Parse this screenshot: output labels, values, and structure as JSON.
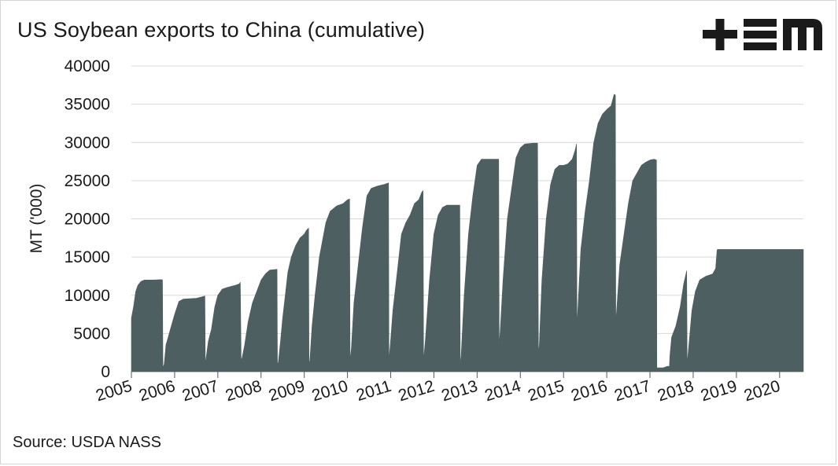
{
  "header": {
    "title": "US Soybean exports to China (cumulative)"
  },
  "footer": {
    "source": "Source: USDA NASS"
  },
  "logo": {
    "icon": "tem-logo",
    "text": "+EM",
    "color": "#1a1a1a"
  },
  "chart_data": {
    "type": "area",
    "title": "US Soybean exports to China (cumulative)",
    "xlabel": "",
    "ylabel": "MT ('000)",
    "ylim": [
      0,
      40000
    ],
    "yticks": [
      0,
      5000,
      10000,
      15000,
      20000,
      25000,
      30000,
      35000,
      40000
    ],
    "xlim": [
      2005.0,
      2020.55
    ],
    "xticks": [
      "2005",
      "2006",
      "2007",
      "2008",
      "2009",
      "2010",
      "2011",
      "2012",
      "2013",
      "2014",
      "2015",
      "2016",
      "2017",
      "2018",
      "2019",
      "2020"
    ],
    "grid": "horizontal",
    "legend": "none",
    "fill_color": "#4d5f60",
    "series": [
      {
        "values": [
          [
            2005.0,
            7000
          ],
          [
            2005.05,
            8500
          ],
          [
            2005.1,
            10500
          ],
          [
            2005.15,
            11300
          ],
          [
            2005.22,
            11800
          ],
          [
            2005.3,
            12000
          ],
          [
            2005.5,
            12000
          ],
          [
            2005.7,
            12050
          ],
          [
            2005.72,
            12000
          ],
          [
            2005.73,
            500
          ],
          [
            2005.76,
            1000
          ],
          [
            2005.8,
            3500
          ],
          [
            2005.85,
            4500
          ],
          [
            2005.9,
            5500
          ],
          [
            2006.0,
            7500
          ],
          [
            2006.1,
            9200
          ],
          [
            2006.2,
            9500
          ],
          [
            2006.5,
            9600
          ],
          [
            2006.7,
            9900
          ],
          [
            2006.71,
            1000
          ],
          [
            2006.72,
            1500
          ],
          [
            2006.78,
            4000
          ],
          [
            2006.85,
            5500
          ],
          [
            2006.93,
            8500
          ],
          [
            2007.0,
            10000
          ],
          [
            2007.1,
            10800
          ],
          [
            2007.2,
            11000
          ],
          [
            2007.4,
            11300
          ],
          [
            2007.5,
            11500
          ],
          [
            2007.52,
            11700
          ],
          [
            2007.54,
            1500
          ],
          [
            2007.56,
            1800
          ],
          [
            2007.62,
            3500
          ],
          [
            2007.7,
            6500
          ],
          [
            2007.8,
            9000
          ],
          [
            2007.9,
            10500
          ],
          [
            2008.0,
            12000
          ],
          [
            2008.1,
            12800
          ],
          [
            2008.2,
            13300
          ],
          [
            2008.37,
            13400
          ],
          [
            2008.38,
            1000
          ],
          [
            2008.4,
            1200
          ],
          [
            2008.45,
            4000
          ],
          [
            2008.5,
            7000
          ],
          [
            2008.55,
            9500
          ],
          [
            2008.62,
            13000
          ],
          [
            2008.7,
            15000
          ],
          [
            2008.8,
            16500
          ],
          [
            2008.9,
            17500
          ],
          [
            2009.0,
            18000
          ],
          [
            2009.05,
            18500
          ],
          [
            2009.1,
            18800
          ],
          [
            2009.11,
            1000
          ],
          [
            2009.13,
            1500
          ],
          [
            2009.18,
            6000
          ],
          [
            2009.25,
            10000
          ],
          [
            2009.35,
            15000
          ],
          [
            2009.5,
            19500
          ],
          [
            2009.6,
            21000
          ],
          [
            2009.75,
            21700
          ],
          [
            2009.9,
            22000
          ],
          [
            2010.0,
            22500
          ],
          [
            2010.05,
            22600
          ],
          [
            2010.06,
            1500
          ],
          [
            2010.09,
            3000
          ],
          [
            2010.15,
            9000
          ],
          [
            2010.25,
            14000
          ],
          [
            2010.35,
            19000
          ],
          [
            2010.45,
            23000
          ],
          [
            2010.55,
            24000
          ],
          [
            2010.7,
            24300
          ],
          [
            2010.85,
            24500
          ],
          [
            2010.95,
            24700
          ],
          [
            2010.96,
            1500
          ],
          [
            2010.99,
            3500
          ],
          [
            2011.05,
            8000
          ],
          [
            2011.15,
            13000
          ],
          [
            2011.25,
            18000
          ],
          [
            2011.35,
            19500
          ],
          [
            2011.45,
            20500
          ],
          [
            2011.55,
            22000
          ],
          [
            2011.65,
            22500
          ],
          [
            2011.72,
            23500
          ],
          [
            2011.75,
            23700
          ],
          [
            2011.76,
            1500
          ],
          [
            2011.8,
            4000
          ],
          [
            2011.9,
            12000
          ],
          [
            2012.0,
            18000
          ],
          [
            2012.1,
            20500
          ],
          [
            2012.2,
            21500
          ],
          [
            2012.3,
            21800
          ],
          [
            2012.45,
            21800
          ],
          [
            2012.6,
            21800
          ],
          [
            2012.61,
            1000
          ],
          [
            2012.63,
            2000
          ],
          [
            2012.7,
            10000
          ],
          [
            2012.8,
            18000
          ],
          [
            2012.9,
            23000
          ],
          [
            2013.0,
            27000
          ],
          [
            2013.1,
            27800
          ],
          [
            2013.3,
            27800
          ],
          [
            2013.5,
            27800
          ],
          [
            2013.51,
            3500
          ],
          [
            2013.53,
            5000
          ],
          [
            2013.6,
            12000
          ],
          [
            2013.7,
            20000
          ],
          [
            2013.8,
            24000
          ],
          [
            2013.9,
            28000
          ],
          [
            2014.0,
            29300
          ],
          [
            2014.1,
            29800
          ],
          [
            2014.3,
            29900
          ],
          [
            2014.4,
            29900
          ],
          [
            2014.42,
            2500
          ],
          [
            2014.44,
            3500
          ],
          [
            2014.5,
            12000
          ],
          [
            2014.6,
            20000
          ],
          [
            2014.7,
            24500
          ],
          [
            2014.8,
            26500
          ],
          [
            2014.9,
            27000
          ],
          [
            2015.0,
            27000
          ],
          [
            2015.1,
            27200
          ],
          [
            2015.2,
            27800
          ],
          [
            2015.27,
            29000
          ],
          [
            2015.3,
            29800
          ],
          [
            2015.31,
            6000
          ],
          [
            2015.33,
            8000
          ],
          [
            2015.4,
            16000
          ],
          [
            2015.5,
            21000
          ],
          [
            2015.6,
            25000
          ],
          [
            2015.7,
            30000
          ],
          [
            2015.8,
            32500
          ],
          [
            2015.9,
            33700
          ],
          [
            2016.0,
            34300
          ],
          [
            2016.1,
            34800
          ],
          [
            2016.17,
            36300
          ],
          [
            2016.2,
            36200
          ],
          [
            2016.21,
            6500
          ],
          [
            2016.23,
            8000
          ],
          [
            2016.3,
            14000
          ],
          [
            2016.4,
            18000
          ],
          [
            2016.5,
            22000
          ],
          [
            2016.6,
            25000
          ],
          [
            2016.7,
            26000
          ],
          [
            2016.8,
            27000
          ],
          [
            2016.9,
            27400
          ],
          [
            2017.0,
            27700
          ],
          [
            2017.1,
            27800
          ],
          [
            2017.15,
            27700
          ],
          [
            2017.16,
            500
          ],
          [
            2017.3,
            500
          ],
          [
            2017.4,
            700
          ],
          [
            2017.44,
            700
          ],
          [
            2017.45,
            500
          ],
          [
            2017.46,
            2000
          ],
          [
            2017.5,
            4500
          ],
          [
            2017.6,
            6000
          ],
          [
            2017.7,
            8500
          ],
          [
            2017.78,
            11500
          ],
          [
            2017.85,
            13200
          ],
          [
            2017.86,
            1000
          ],
          [
            2017.9,
            3500
          ],
          [
            2017.97,
            8000
          ],
          [
            2018.05,
            10500
          ],
          [
            2018.15,
            12000
          ],
          [
            2018.3,
            12500
          ],
          [
            2018.45,
            12800
          ],
          [
            2018.52,
            13500
          ],
          [
            2018.55,
            15800
          ],
          [
            2018.56,
            16000
          ],
          [
            2020.55,
            16000
          ],
          [
            2020.55,
            0
          ]
        ]
      }
    ]
  }
}
